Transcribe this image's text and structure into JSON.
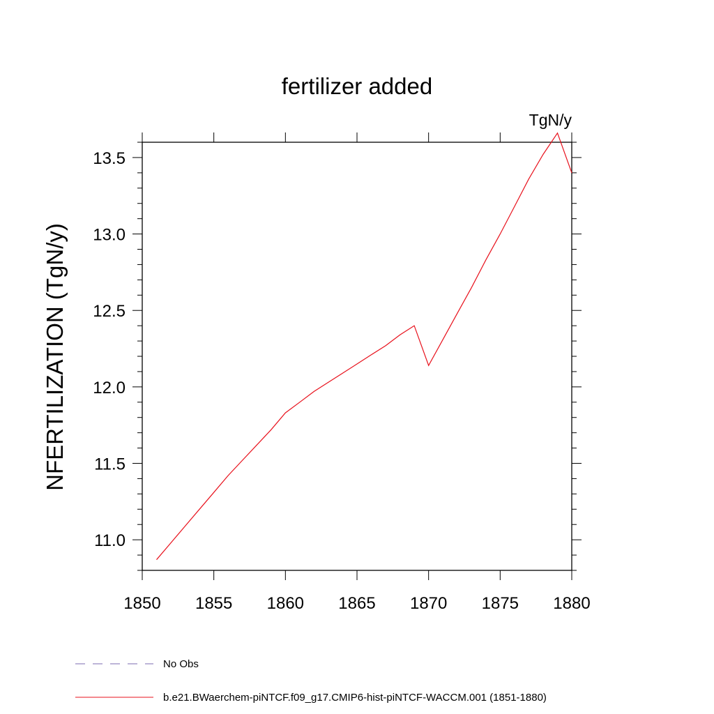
{
  "chart_data": {
    "type": "line",
    "title": "fertilizer added",
    "units": "TgN/y",
    "ylabel": "NFERTILIZATION  (TgN/y)",
    "xlabel": "",
    "xlim": [
      1850,
      1880
    ],
    "ylim": [
      10.8,
      13.6
    ],
    "xticks": [
      1850,
      1855,
      1860,
      1865,
      1870,
      1875,
      1880
    ],
    "xtick_labels": [
      "1850",
      "1855",
      "1860",
      "1865",
      "1870",
      "1875",
      "1880"
    ],
    "yticks": [
      11.0,
      11.5,
      12.0,
      12.5,
      13.0,
      13.5
    ],
    "ytick_labels": [
      "11.0",
      "11.5",
      "12.0",
      "12.5",
      "13.0",
      "13.5"
    ],
    "grid": false,
    "legend_position": "bottom",
    "series": [
      {
        "name": "b.e21.BWaerchem-piNTCF.f09_g17.CMIP6-hist-piNTCF-WACCM.001 (1851-1880)",
        "color": "#e8101b",
        "x": [
          1851,
          1852,
          1853,
          1854,
          1855,
          1856,
          1857,
          1858,
          1859,
          1860,
          1861,
          1862,
          1863,
          1864,
          1865,
          1866,
          1867,
          1868,
          1869,
          1870,
          1871,
          1872,
          1873,
          1874,
          1875,
          1876,
          1877,
          1878,
          1879,
          1880
        ],
        "y": [
          10.87,
          10.98,
          11.09,
          11.2,
          11.31,
          11.42,
          11.52,
          11.62,
          11.72,
          11.83,
          11.9,
          11.97,
          12.03,
          12.09,
          12.15,
          12.21,
          12.27,
          12.34,
          12.4,
          12.14,
          12.31,
          12.48,
          12.65,
          12.83,
          13.0,
          13.18,
          13.36,
          13.52,
          13.66,
          13.4
        ]
      }
    ],
    "legend_entries": [
      {
        "label": "No Obs",
        "color": "#7b6bb0",
        "style": "dashed"
      },
      {
        "label": "b.e21.BWaerchem-piNTCF.f09_g17.CMIP6-hist-piNTCF-WACCM.001 (1851-1880)",
        "color": "#e8101b",
        "style": "solid"
      }
    ]
  }
}
